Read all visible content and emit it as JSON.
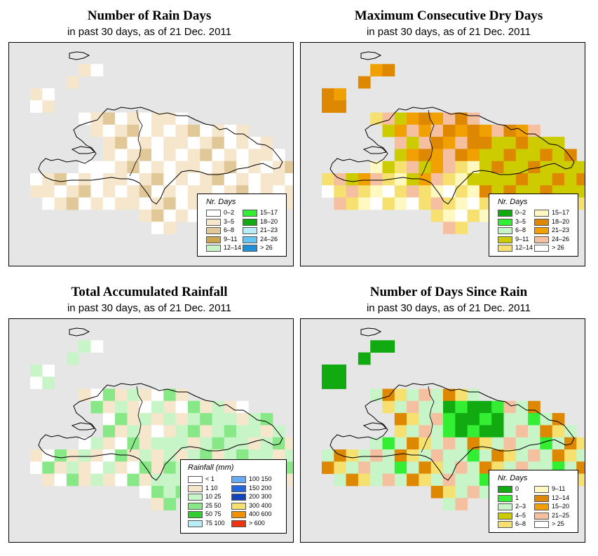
{
  "panels": [
    {
      "title": "Number of Rain Days",
      "subtitle": "in past 30 days, as of  21 Dec. 2011",
      "legend_title": "Nr. Days",
      "legend": [
        {
          "label": "0–2",
          "color": "#ffffff"
        },
        {
          "label": "3–5",
          "color": "#f5e6cc"
        },
        {
          "label": "6–8",
          "color": "#e0c898"
        },
        {
          "label": "9–11",
          "color": "#c9a850"
        },
        {
          "label": "12–14",
          "color": "#c8f5c8"
        },
        {
          "label": "15–17",
          "color": "#33ee33"
        },
        {
          "label": "18–20",
          "color": "#11aa11"
        },
        {
          "label": "21–23",
          "color": "#b8eef8"
        },
        {
          "label": "24–26",
          "color": "#66c4f2"
        },
        {
          "label": "> 26",
          "color": "#1e90d8"
        }
      ]
    },
    {
      "title": "Maximum Consecutive Dry Days",
      "subtitle": "in past 30 days, as of  21 Dec. 2011",
      "legend_title": "Nr. Days",
      "legend": [
        {
          "label": "0–2",
          "color": "#11aa11"
        },
        {
          "label": "3–5",
          "color": "#33ee33"
        },
        {
          "label": "6–8",
          "color": "#c8f5c8"
        },
        {
          "label": "9–11",
          "color": "#cccc00"
        },
        {
          "label": "12–14",
          "color": "#f5e070"
        },
        {
          "label": "15–17",
          "color": "#fff8c0"
        },
        {
          "label": "18–20",
          "color": "#dd8800"
        },
        {
          "label": "21–23",
          "color": "#f0a000"
        },
        {
          "label": "24–26",
          "color": "#f5c0a0"
        },
        {
          "label": "> 26",
          "color": "#ffffff"
        }
      ]
    },
    {
      "title": "Total Accumulated Rainfall",
      "subtitle": "in past 30 days, as of  21 Dec. 2011",
      "legend_title": "Rainfall (mm)",
      "legend": [
        {
          "label": "< 1",
          "color": "#ffffff"
        },
        {
          "label": "1   10",
          "color": "#f5e6cc"
        },
        {
          "label": "10   25",
          "color": "#c8f5c8"
        },
        {
          "label": "25   50",
          "color": "#88e888"
        },
        {
          "label": "50   75",
          "color": "#33cc33"
        },
        {
          "label": "75   100",
          "color": "#b8eef8"
        },
        {
          "label": "100   150",
          "color": "#66aaf2"
        },
        {
          "label": "150   200",
          "color": "#2266dd"
        },
        {
          "label": "200   300",
          "color": "#1144bb"
        },
        {
          "label": "300   400",
          "color": "#f5e070"
        },
        {
          "label": "400   600",
          "color": "#f09000"
        },
        {
          "label": "> 600",
          "color": "#ee3311"
        }
      ]
    },
    {
      "title": "Number of Days Since Rain",
      "subtitle": "in past 30 days, as of  21 Dec. 2011",
      "legend_title": "Nr. Days",
      "legend": [
        {
          "label": "0",
          "color": "#11aa11"
        },
        {
          "label": "1",
          "color": "#33ee33"
        },
        {
          "label": "2–3",
          "color": "#c8f5c8"
        },
        {
          "label": "4–5",
          "color": "#cccc00"
        },
        {
          "label": "6–8",
          "color": "#f5e070"
        },
        {
          "label": "9–11",
          "color": "#fff8c0"
        },
        {
          "label": "12–14",
          "color": "#dd8800"
        },
        {
          "label": "15–20",
          "color": "#f0a000"
        },
        {
          "label": "21–25",
          "color": "#f5c0a0"
        },
        {
          "label": "> 25",
          "color": "#ffffff"
        }
      ]
    }
  ]
}
